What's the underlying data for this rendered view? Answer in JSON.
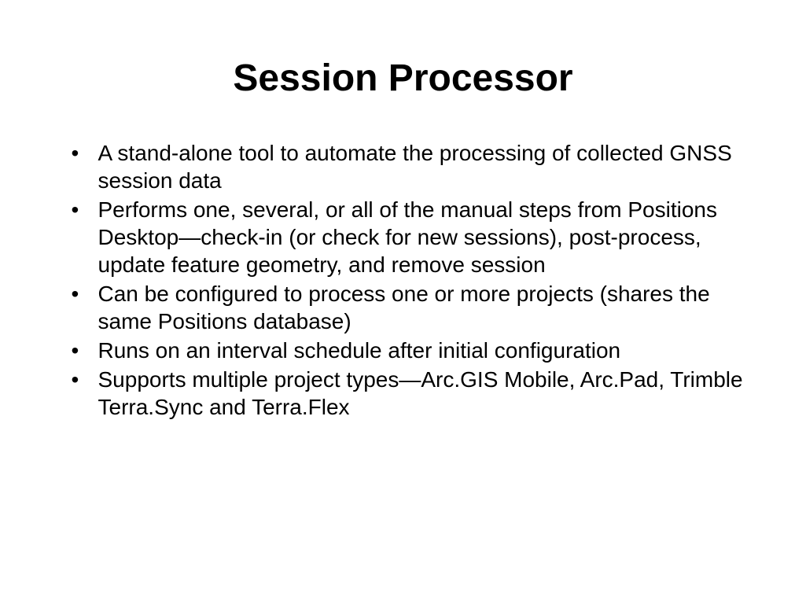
{
  "slide": {
    "title": "Session Processor",
    "title_fontsize": 48,
    "title_fontweight": "bold",
    "body_fontsize": 28,
    "background_color": "#ffffff",
    "text_color": "#000000",
    "bullets": [
      "A stand-alone tool to automate the processing of collected GNSS session data",
      "Performs one, several, or all of the manual steps from Positions Desktop—check-in (or check for new sessions), post-process, update feature geometry, and remove session",
      "Can be configured to process one or more projects (shares the same Positions database)",
      "Runs on an interval schedule after initial configuration",
      "Supports multiple project types—Arc.GIS Mobile, Arc.Pad, Trimble Terra.Sync and Terra.Flex"
    ]
  }
}
